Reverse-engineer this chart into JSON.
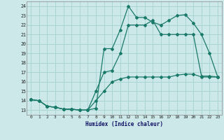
{
  "xlabel": "Humidex (Indice chaleur)",
  "bg_color": "#cce8e8",
  "grid_color": "#aad4d4",
  "line_color": "#1a7a6a",
  "xlim": [
    -0.5,
    23.5
  ],
  "ylim": [
    12.5,
    24.5
  ],
  "xticks": [
    0,
    1,
    2,
    3,
    4,
    5,
    6,
    7,
    8,
    9,
    10,
    11,
    12,
    13,
    14,
    15,
    16,
    17,
    18,
    19,
    20,
    21,
    22,
    23
  ],
  "yticks": [
    13,
    14,
    15,
    16,
    17,
    18,
    19,
    20,
    21,
    22,
    23,
    24
  ],
  "line1_x": [
    0,
    1,
    2,
    3,
    4,
    5,
    6,
    7,
    8,
    9,
    10,
    11,
    12,
    13,
    14,
    15,
    16,
    17,
    18,
    19,
    20,
    21,
    22,
    23
  ],
  "line1_y": [
    14.1,
    14.0,
    13.4,
    13.3,
    13.1,
    13.1,
    13.0,
    13.0,
    13.2,
    19.5,
    19.5,
    21.5,
    24.0,
    22.8,
    22.8,
    22.3,
    22.0,
    22.5,
    23.0,
    23.1,
    22.2,
    21.0,
    19.0,
    16.5
  ],
  "line2_x": [
    0,
    1,
    2,
    3,
    4,
    5,
    6,
    7,
    8,
    9,
    10,
    11,
    12,
    13,
    14,
    15,
    16,
    17,
    18,
    19,
    20,
    21,
    22,
    23
  ],
  "line2_y": [
    14.1,
    14.0,
    13.4,
    13.3,
    13.1,
    13.1,
    13.0,
    13.0,
    15.0,
    17.0,
    17.2,
    19.0,
    22.0,
    22.0,
    22.0,
    22.5,
    21.0,
    21.0,
    21.0,
    21.0,
    21.0,
    16.6,
    16.6,
    16.5
  ],
  "line3_x": [
    0,
    1,
    2,
    3,
    4,
    5,
    6,
    7,
    8,
    9,
    10,
    11,
    12,
    13,
    14,
    15,
    16,
    17,
    18,
    19,
    20,
    21,
    22,
    23
  ],
  "line3_y": [
    14.1,
    14.0,
    13.4,
    13.3,
    13.1,
    13.1,
    13.0,
    13.0,
    14.0,
    15.0,
    16.0,
    16.3,
    16.5,
    16.5,
    16.5,
    16.5,
    16.5,
    16.5,
    16.7,
    16.8,
    16.8,
    16.5,
    16.5,
    16.5
  ]
}
